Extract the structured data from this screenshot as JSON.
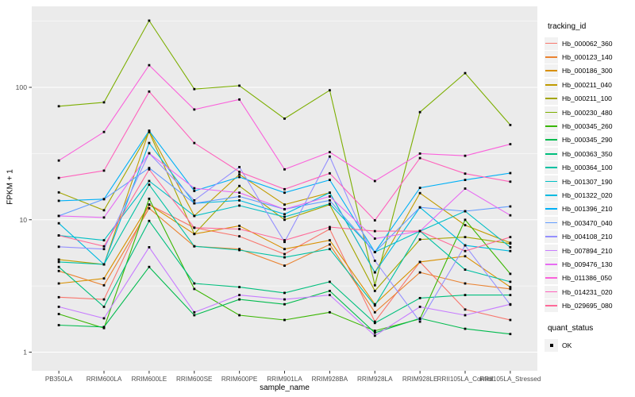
{
  "figure": {
    "x_axis_title": "sample_name",
    "y_axis_title": "FPKM + 1",
    "legend": {
      "tracking_title": "tracking_id",
      "quant_title": "quant_status",
      "quant_item_label": "OK"
    },
    "colors": {
      "panel_background": "#EBEBEB",
      "grid": "#FFFFFF",
      "legend_key_background": "#F2F2F2",
      "tick_text": "#4D4D4D",
      "tick_mark": "#333333",
      "point": "#000000"
    }
  },
  "chart_data": {
    "type": "line",
    "title": "",
    "xlabel": "sample_name",
    "ylabel": "FPKM + 1",
    "y_scale": "log10",
    "ylim": [
      0.72,
      410
    ],
    "y_breaks": [
      1,
      10,
      100
    ],
    "y_break_labels": [
      "1",
      "10",
      "100"
    ],
    "y_minor_breaks": [
      3.162,
      31.62,
      316.2
    ],
    "grid": true,
    "legend_position": "right",
    "point_shape": "filled-square",
    "quant_status": "OK",
    "categories": [
      "PB350LA",
      "RRIM600LA",
      "RRIM600LE",
      "RRIM600SE",
      "RRIM600PE",
      "RRIM901LA",
      "RRIM928BA",
      "RRIM928LA",
      "RRIM928LE",
      "RRII105LA_Control",
      "RRII105LA_Stressed"
    ],
    "series": [
      {
        "name": "Hb_000062_360",
        "color": "#F8766D",
        "values": [
          2.6,
          2.5,
          13.0,
          8.7,
          7.5,
          5.5,
          8.5,
          1.7,
          4.8,
          2.1,
          1.75
        ]
      },
      {
        "name": "Hb_000123_140",
        "color": "#EA8331",
        "values": [
          4.1,
          3.2,
          12.2,
          6.3,
          6.0,
          4.5,
          6.5,
          2.0,
          4.0,
          3.3,
          3.0
        ]
      },
      {
        "name": "Hb_000186_300",
        "color": "#D89000",
        "values": [
          3.3,
          3.6,
          13.0,
          7.8,
          9.0,
          6.0,
          7.0,
          2.3,
          4.8,
          5.3,
          3.1
        ]
      },
      {
        "name": "Hb_000211_040",
        "color": "#C09B00",
        "values": [
          5.0,
          4.6,
          47.0,
          10.7,
          22.0,
          13.0,
          16.0,
          4.0,
          15.9,
          9.1,
          6.7
        ]
      },
      {
        "name": "Hb_000211_100",
        "color": "#A3A500",
        "values": [
          16.1,
          11.8,
          46.0,
          7.8,
          18.0,
          10.0,
          13.0,
          2.9,
          7.1,
          7.4,
          6.6
        ]
      },
      {
        "name": "Hb_000230_480",
        "color": "#7CAE00",
        "values": [
          72,
          77,
          319,
          97,
          103,
          58,
          95,
          3.2,
          65,
          128,
          52
        ]
      },
      {
        "name": "Hb_000345_260",
        "color": "#39B600",
        "values": [
          1.94,
          1.52,
          14.4,
          3.0,
          1.9,
          1.75,
          2.0,
          1.45,
          1.78,
          10.0,
          3.9
        ]
      },
      {
        "name": "Hb_000345_290",
        "color": "#00BB4E",
        "values": [
          1.6,
          1.55,
          4.4,
          1.9,
          2.5,
          2.3,
          2.9,
          1.4,
          1.8,
          1.5,
          1.37
        ]
      },
      {
        "name": "Hb_000363_350",
        "color": "#00BF7D",
        "values": [
          4.4,
          2.2,
          9.8,
          3.3,
          3.1,
          2.8,
          3.4,
          1.66,
          2.56,
          2.7,
          2.7
        ]
      },
      {
        "name": "Hb_000364_100",
        "color": "#00C1A3",
        "values": [
          4.8,
          4.6,
          18.4,
          6.3,
          5.9,
          5.2,
          6.0,
          2.25,
          8.2,
          4.2,
          3.4
        ]
      },
      {
        "name": "Hb_001307_190",
        "color": "#00BFC4",
        "values": [
          7.6,
          7.0,
          19.6,
          10.7,
          12.8,
          10.5,
          13.2,
          5.7,
          8.2,
          11.6,
          6.2
        ]
      },
      {
        "name": "Hb_001322_020",
        "color": "#00BAE0",
        "values": [
          9.4,
          4.6,
          38.0,
          13.3,
          14.0,
          11.0,
          16.0,
          4.0,
          12.4,
          6.4,
          5.8
        ]
      },
      {
        "name": "Hb_001396_210",
        "color": "#00B0F6",
        "values": [
          13.9,
          14.3,
          47.0,
          16.5,
          21.0,
          16.0,
          20.0,
          5.7,
          17.4,
          20.0,
          22.5
        ]
      },
      {
        "name": "Hb_003470_040",
        "color": "#619CFF",
        "values": [
          10.7,
          14.3,
          24.6,
          13.3,
          15.0,
          12.0,
          14.0,
          5.7,
          12.4,
          11.6,
          12.6
        ]
      },
      {
        "name": "Hb_004108_210",
        "color": "#9590FF",
        "values": [
          6.25,
          6.0,
          31.8,
          14.0,
          25.0,
          6.8,
          30.0,
          4.9,
          1.7,
          6.4,
          2.28
        ]
      },
      {
        "name": "Hb_007894_210",
        "color": "#C77CFF",
        "values": [
          2.2,
          1.8,
          6.2,
          2.0,
          2.7,
          2.5,
          2.7,
          1.33,
          2.2,
          1.9,
          2.3
        ]
      },
      {
        "name": "Hb_009476_130",
        "color": "#E76BF3",
        "values": [
          10.7,
          10.4,
          31.8,
          17.3,
          16.0,
          12.0,
          15.0,
          7.2,
          8.2,
          17.2,
          10.8
        ]
      },
      {
        "name": "Hb_011386_050",
        "color": "#FA62DB",
        "values": [
          28,
          46,
          147,
          68,
          81,
          24,
          32.4,
          19.6,
          31.6,
          30.4,
          37.2
        ]
      },
      {
        "name": "Hb_014231_020",
        "color": "#FF62BC",
        "values": [
          20.7,
          23.5,
          93,
          38,
          23,
          17,
          22.4,
          9.9,
          29.2,
          22.3,
          19.4
        ]
      },
      {
        "name": "Hb_029695_080",
        "color": "#FF6A98",
        "values": [
          7.6,
          6.3,
          24,
          8.7,
          8.5,
          7.0,
          8.8,
          8.2,
          8.2,
          5.8,
          7.4
        ]
      }
    ]
  }
}
